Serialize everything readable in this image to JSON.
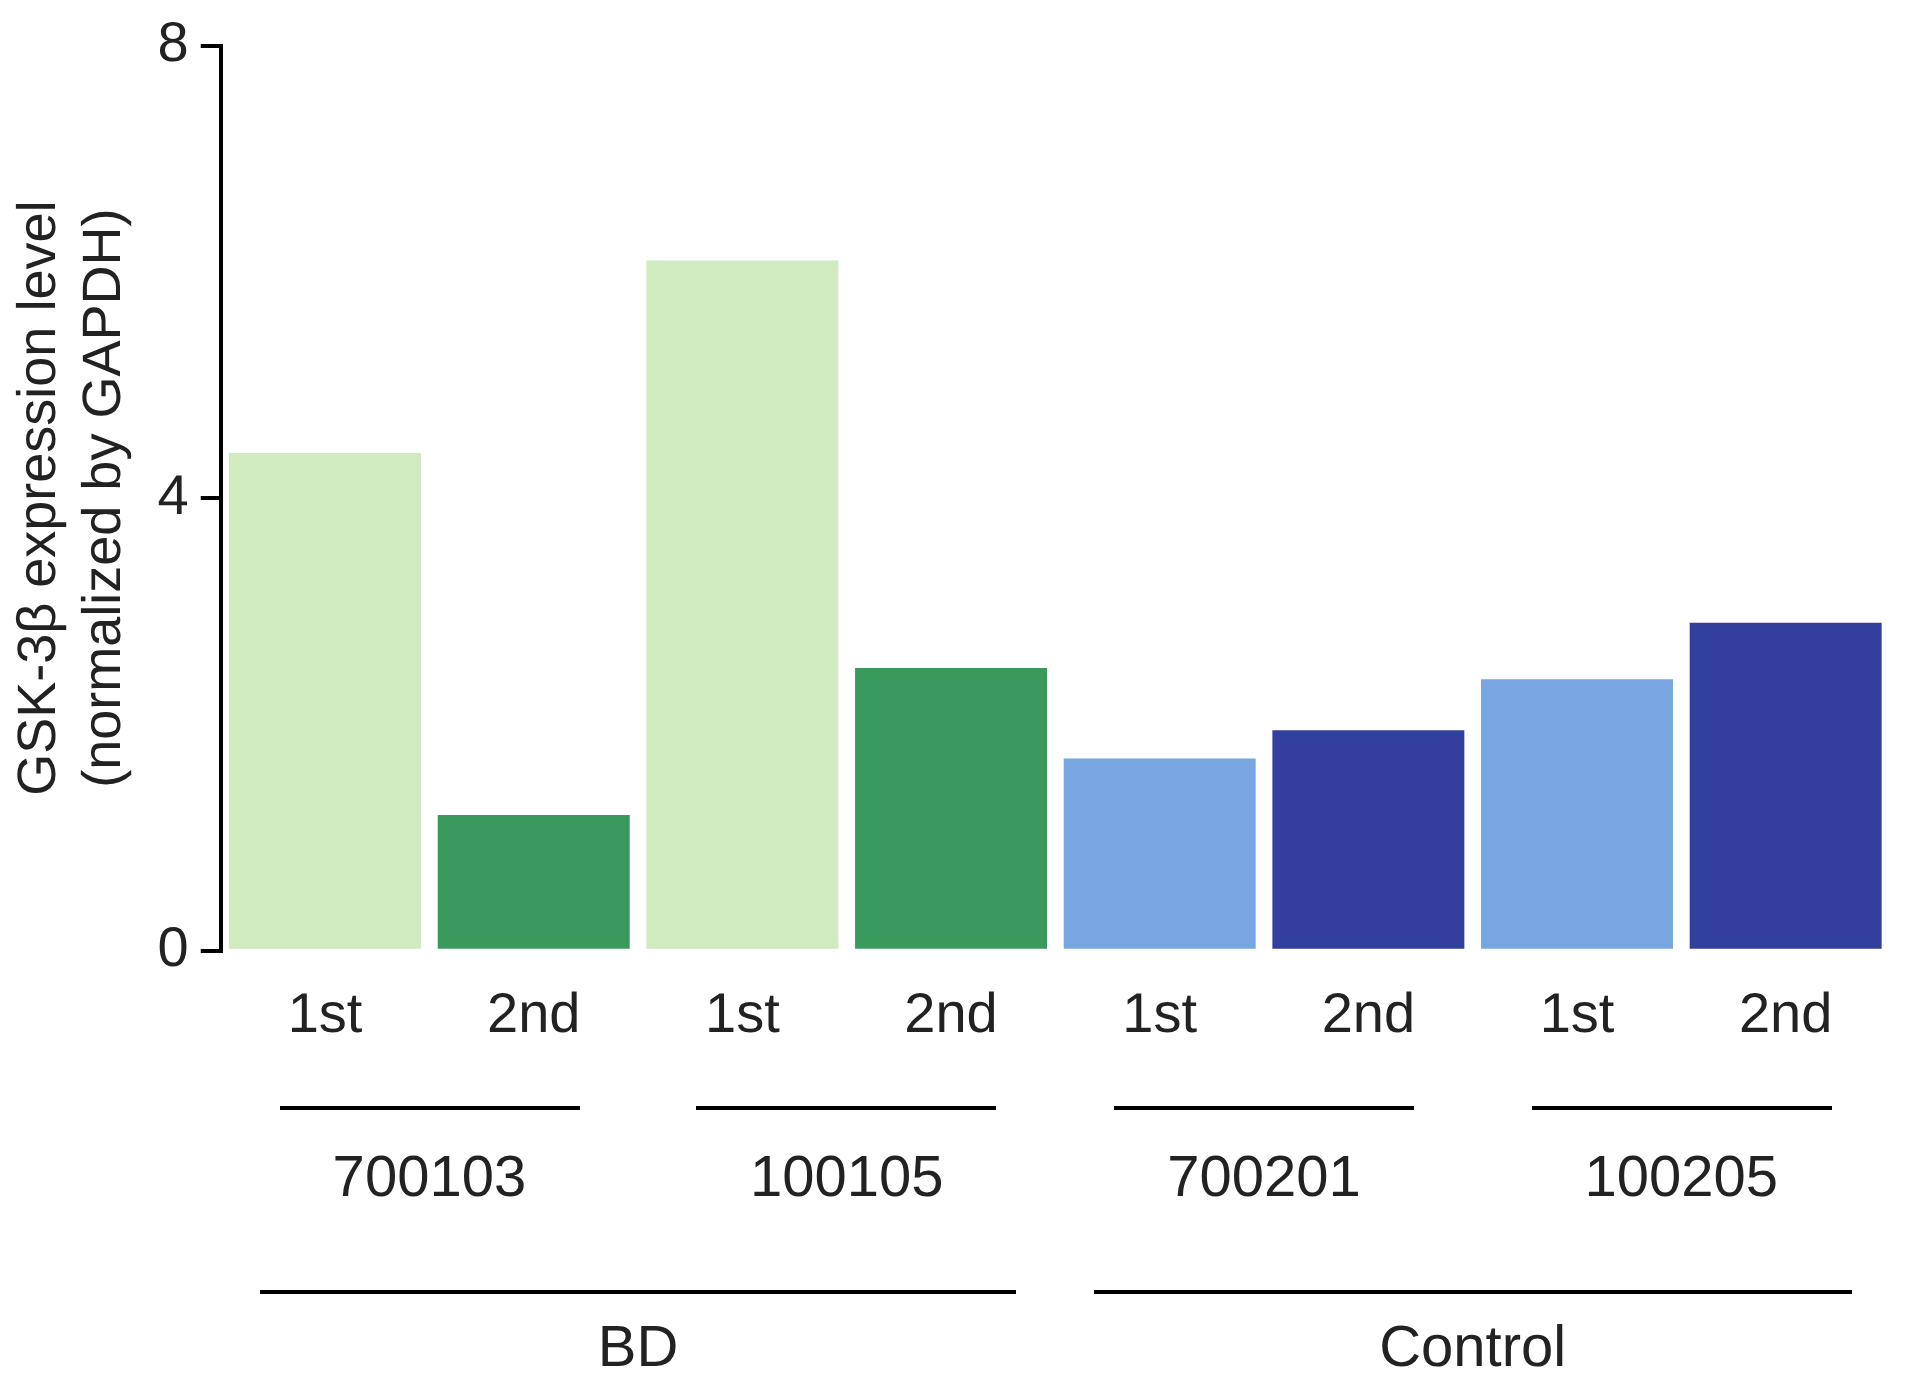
{
  "chart_data": {
    "type": "bar",
    "ylabel": "GSK-3β expression level\n(normalized by GAPDH)",
    "categories": [
      "1st",
      "2nd",
      "1st",
      "2nd",
      "1st",
      "2nd",
      "1st",
      "2nd"
    ],
    "values": [
      4.4,
      1.2,
      6.1,
      2.5,
      1.7,
      1.95,
      2.4,
      2.9
    ],
    "colors": [
      "#d0ebbf",
      "#3a9a5e",
      "#d0ebbf",
      "#3a9a5e",
      "#77a6e0",
      "#323f9c",
      "#77a6e0",
      "#323f9c"
    ],
    "ylim": [
      0,
      8
    ],
    "yticks": [
      0,
      4,
      8
    ],
    "grid": false,
    "legend": false,
    "annotations": [
      "700103",
      "100105",
      "700201",
      "100205",
      "BD",
      "Control"
    ]
  }
}
